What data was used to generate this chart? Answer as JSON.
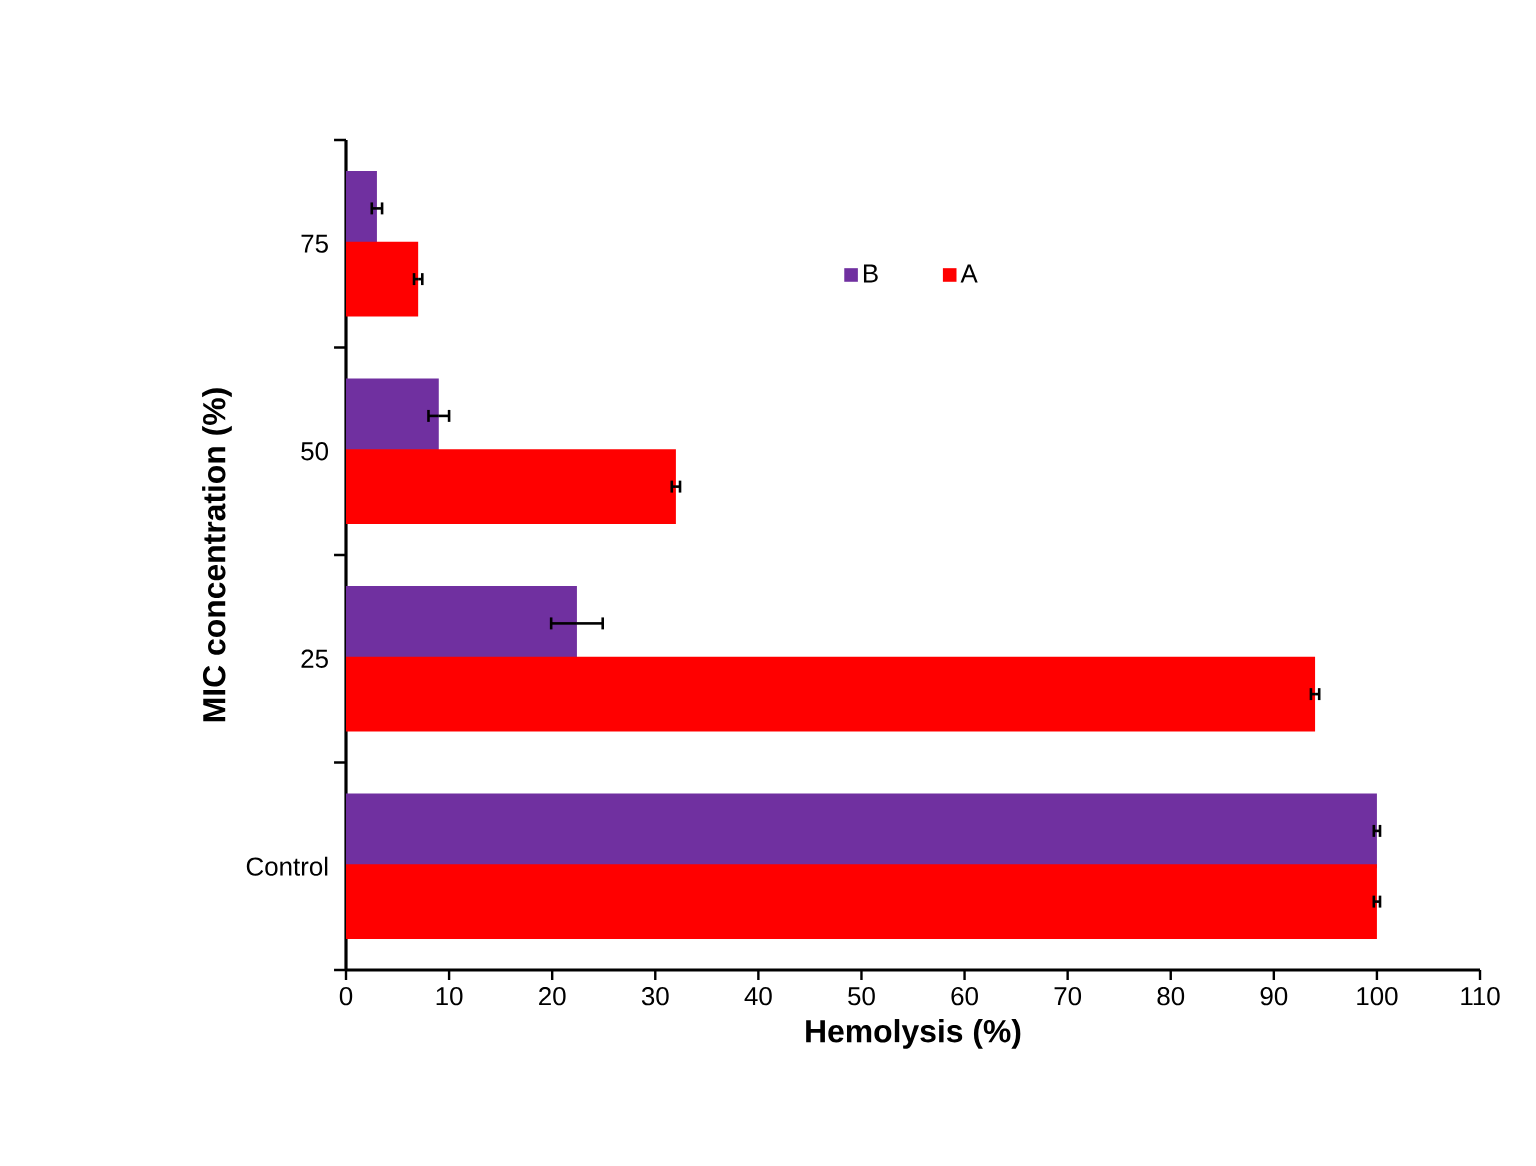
{
  "chart_data": {
    "type": "bar",
    "orientation": "horizontal",
    "xlabel": "Hemolysis  (%)",
    "ylabel": "MIC concentration (%)",
    "categories": [
      "75",
      "50",
      "25",
      "Control"
    ],
    "series": [
      {
        "name": "B",
        "color": "#7030a0",
        "values": [
          3,
          9,
          22.4,
          100
        ],
        "errors": [
          0.5,
          1,
          2.5,
          0.3
        ]
      },
      {
        "name": "A",
        "color": "#ff0000",
        "values": [
          7,
          32,
          94,
          100
        ],
        "errors": [
          0.4,
          0.4,
          0.4,
          0.3
        ]
      }
    ],
    "xlim": [
      0,
      110
    ],
    "xticks": [
      0,
      10,
      20,
      30,
      40,
      50,
      60,
      70,
      80,
      90,
      100,
      110
    ],
    "legend": "top",
    "grid": false
  }
}
